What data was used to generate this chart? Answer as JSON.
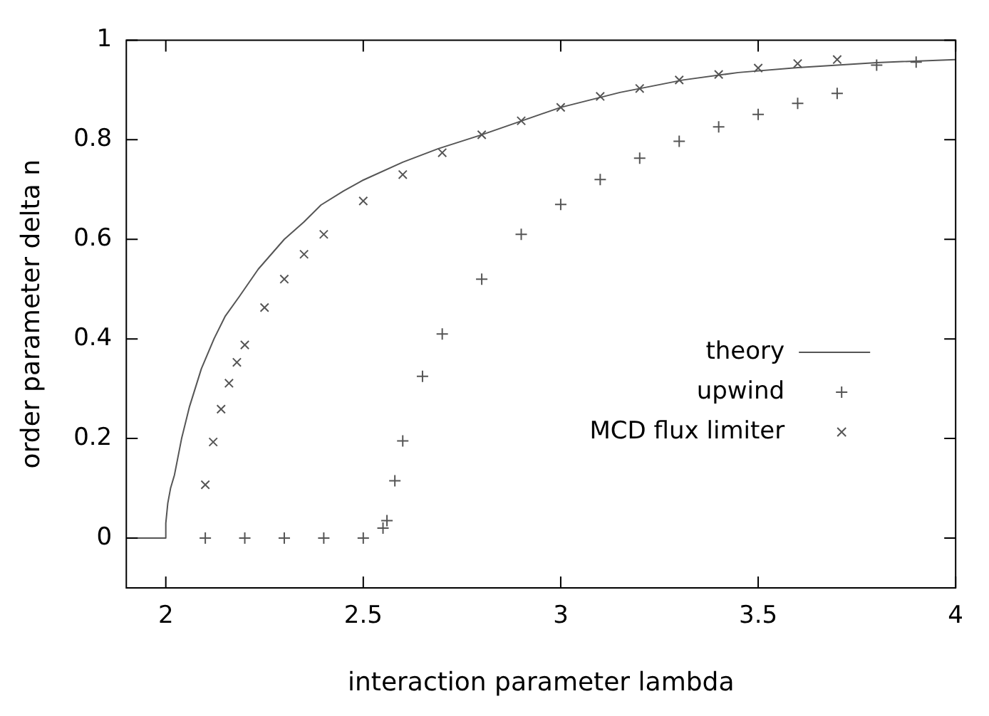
{
  "chart_data": {
    "type": "scatter",
    "xlabel": "interaction parameter lambda",
    "ylabel": "order parameter delta n",
    "xlim": [
      1.9,
      4
    ],
    "ylim": [
      -0.1,
      1
    ],
    "xticks": [
      2,
      2.5,
      3,
      3.5,
      4
    ],
    "yticks": [
      0,
      0.2,
      0.4,
      0.6,
      0.8,
      1
    ],
    "legend": "right",
    "grid": false,
    "series": [
      {
        "name": "theory",
        "type": "line",
        "marker": "none",
        "color": "#555555",
        "x": [
          1.9,
          2,
          2,
          2.005,
          2.012,
          2.022,
          2.04,
          2.06,
          2.09,
          2.122,
          2.15,
          2.186,
          2.234,
          2.3,
          2.35,
          2.393,
          2.45,
          2.5,
          2.6,
          2.69,
          2.8,
          3.0,
          3.15,
          3.31,
          3.45,
          3.6,
          3.8,
          4
        ],
        "values": [
          0,
          0,
          0.03,
          0.07,
          0.1,
          0.127,
          0.2,
          0.264,
          0.34,
          0.4,
          0.445,
          0.485,
          0.54,
          0.6,
          0.635,
          0.669,
          0.697,
          0.719,
          0.755,
          0.782,
          0.81,
          0.865,
          0.895,
          0.92,
          0.935,
          0.945,
          0.955,
          0.961
        ]
      },
      {
        "name": "upwind",
        "marker": "cross",
        "color": "#555555",
        "x": [
          2.1,
          2.2,
          2.3,
          2.4,
          2.5,
          2.55,
          2.56,
          2.58,
          2.6,
          2.65,
          2.7,
          2.8,
          2.9,
          3.0,
          3.1,
          3.2,
          3.3,
          3.4,
          3.5,
          3.6,
          3.7,
          3.8,
          3.9
        ],
        "values": [
          0,
          0,
          0,
          0,
          0,
          0.02,
          0.035,
          0.115,
          0.195,
          0.325,
          0.41,
          0.52,
          0.61,
          0.67,
          0.72,
          0.763,
          0.797,
          0.826,
          0.851,
          0.873,
          0.893,
          0.95,
          0.956
        ]
      },
      {
        "name": "MCD flux limiter",
        "marker": "cross",
        "color": "#555555",
        "x": [
          2.1,
          2.12,
          2.14,
          2.16,
          2.18,
          2.2,
          2.25,
          2.3,
          2.35,
          2.4,
          2.5,
          2.6,
          2.7,
          2.8,
          2.9,
          3.0,
          3.1,
          3.2,
          3.3,
          3.4,
          3.5,
          3.6,
          3.7
        ],
        "values": [
          0.107,
          0.193,
          0.259,
          0.311,
          0.353,
          0.388,
          0.463,
          0.52,
          0.57,
          0.61,
          0.677,
          0.73,
          0.774,
          0.81,
          0.838,
          0.865,
          0.887,
          0.903,
          0.92,
          0.931,
          0.944,
          0.953,
          0.961
        ]
      }
    ]
  }
}
